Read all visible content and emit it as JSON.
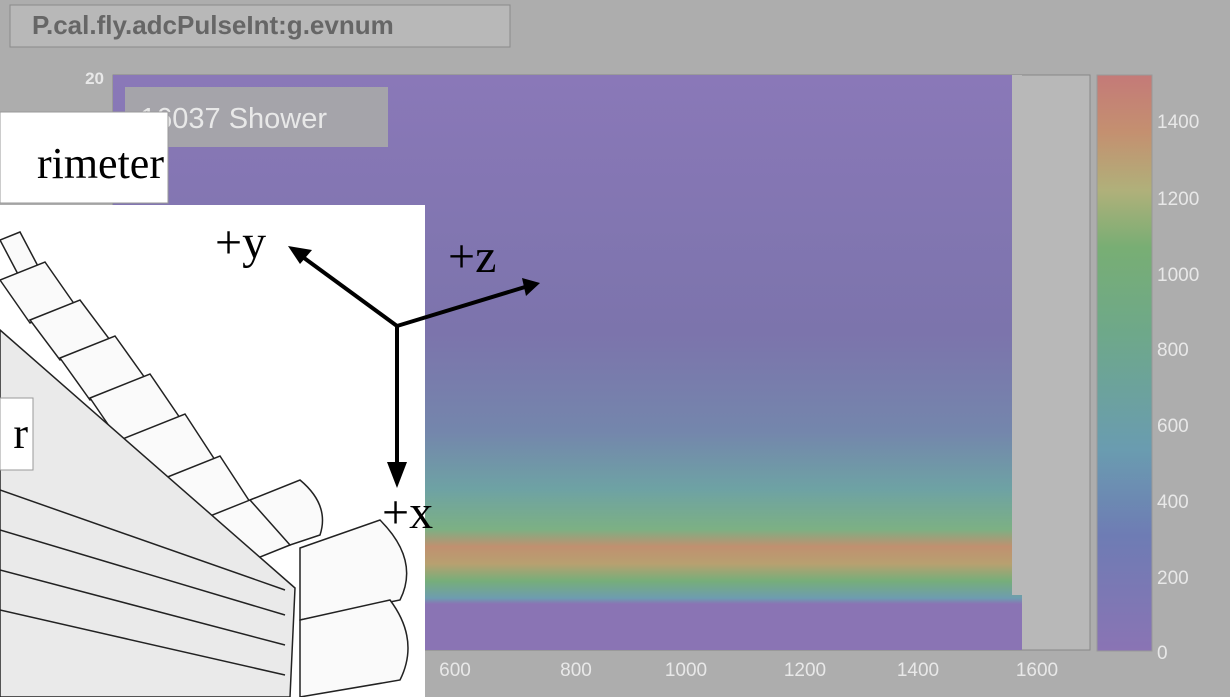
{
  "title": "P.cal.fly.adcPulseInt:g.evnum",
  "stats_label": "16037  Shower",
  "y_axis": {
    "ticks": [
      "20"
    ]
  },
  "x_axis": {
    "ticks": [
      "600",
      "800",
      "1000",
      "1200",
      "1400",
      "1600"
    ]
  },
  "color_scale": {
    "ticks": [
      "1400",
      "1200",
      "1000",
      "800",
      "600",
      "400",
      "200",
      "0"
    ]
  },
  "overlay": {
    "caption_top": "rimeter",
    "caption_side": "r",
    "axes": [
      "+y",
      "+z",
      "+x"
    ]
  }
}
